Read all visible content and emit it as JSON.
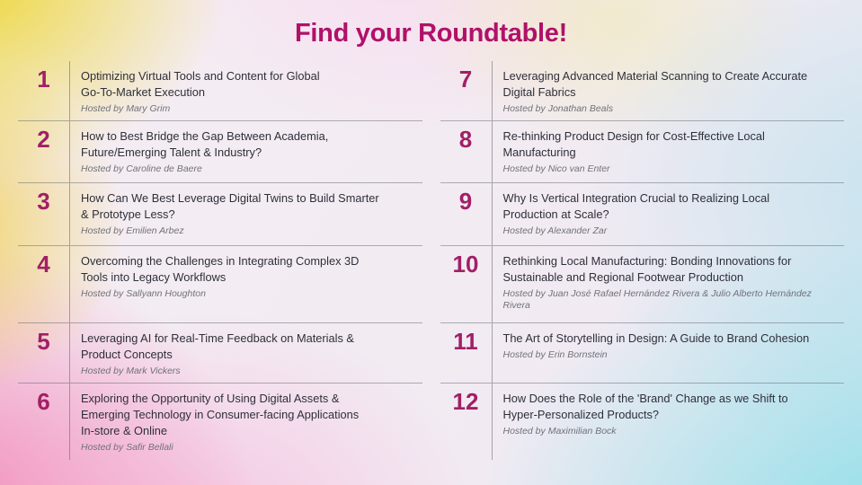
{
  "page": {
    "title": "Find your Roundtable!"
  },
  "colors": {
    "title_color": "#b01169",
    "number_color": "#a21f66",
    "item_title_color": "#2e2f3a",
    "host_color": "#717179",
    "background_corner_top_left": "#ecd62d",
    "background_corner_bottom_left": "#f280b4",
    "background_corner_bottom_right": "#86dee8",
    "background_corner_top_right": "#e3e4ed"
  },
  "columns": [
    {
      "items": [
        {
          "number": "1",
          "title": "Optimizing Virtual Tools and Content for Global\nGo-To-Market Execution",
          "host": "Hosted by Mary Grim"
        },
        {
          "number": "2",
          "title": "How to Best Bridge the Gap Between Academia,\nFuture/Emerging Talent & Industry?",
          "host": "Hosted by Caroline de Baere"
        },
        {
          "number": "3",
          "title": "How Can We Best Leverage Digital Twins to Build Smarter\n& Prototype Less?",
          "host": "Hosted by Emilien Arbez"
        },
        {
          "number": "4",
          "title": "Overcoming the Challenges in Integrating Complex 3D\nTools into Legacy Workflows",
          "host": "Hosted by Sallyann Houghton"
        },
        {
          "number": "5",
          "title": "Leveraging AI for Real-Time Feedback on Materials &\nProduct Concepts",
          "host": "Hosted by Mark Vickers"
        },
        {
          "number": "6",
          "title": "Exploring the Opportunity of Using Digital Assets &\nEmerging Technology in Consumer-facing Applications\nIn-store & Online",
          "host": "Hosted by Safir Bellali"
        }
      ]
    },
    {
      "items": [
        {
          "number": "7",
          "title": "Leveraging Advanced Material Scanning to Create Accurate\nDigital Fabrics",
          "host": "Hosted by Jonathan Beals"
        },
        {
          "number": "8",
          "title": "Re-thinking Product Design for Cost-Effective Local\nManufacturing",
          "host": "Hosted by Nico van Enter"
        },
        {
          "number": "9",
          "title": "Why Is Vertical Integration Crucial to Realizing Local\nProduction at Scale?",
          "host": "Hosted by Alexander Zar"
        },
        {
          "number": "10",
          "title": "Rethinking Local Manufacturing: Bonding Innovations for\nSustainable and Regional Footwear Production",
          "host": "Hosted by Juan José Rafael Hernández Rivera & Julio Alberto Hernández\nRivera"
        },
        {
          "number": "11",
          "title": "The Art of Storytelling in Design: A Guide to Brand Cohesion",
          "host": "Hosted by Erin Bornstein"
        },
        {
          "number": "12",
          "title": "How Does the Role of the 'Brand' Change as we Shift to\nHyper-Personalized Products?",
          "host": "Hosted by Maximilian Bock"
        }
      ]
    }
  ]
}
